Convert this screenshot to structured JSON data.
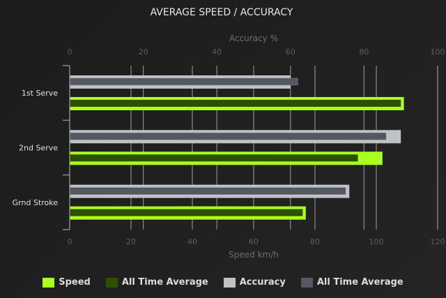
{
  "chart_data": {
    "type": "bar",
    "orientation": "horizontal",
    "title": "AVERAGE SPEED / ACCURACY",
    "categories": [
      "1st Serve",
      "2nd Serve",
      "Grnd Stroke"
    ],
    "xlabel_bottom": "Speed km/h",
    "xlabel_top": "Accuracy %",
    "speed_axis": {
      "range": [
        0,
        120
      ],
      "ticks": [
        0,
        20,
        40,
        60,
        80,
        100,
        120
      ]
    },
    "accuracy_axis": {
      "range": [
        0,
        100
      ],
      "ticks": [
        0,
        20,
        40,
        60,
        80,
        100
      ]
    },
    "grid": true,
    "legend_position": "bottom",
    "series": [
      {
        "name": "Speed",
        "axis": "speed",
        "color": "#aaff22",
        "values": [
          109,
          102,
          77
        ]
      },
      {
        "name": "All Time Average",
        "axis": "speed",
        "color": "#2f4f00",
        "values": [
          108,
          94,
          76
        ]
      },
      {
        "name": "Accuracy",
        "axis": "accuracy",
        "color": "#bfc3c6",
        "values": [
          60,
          90,
          76
        ]
      },
      {
        "name": "All Time Average",
        "axis": "accuracy",
        "color": "#545860",
        "values": [
          62,
          86,
          75
        ]
      }
    ]
  }
}
